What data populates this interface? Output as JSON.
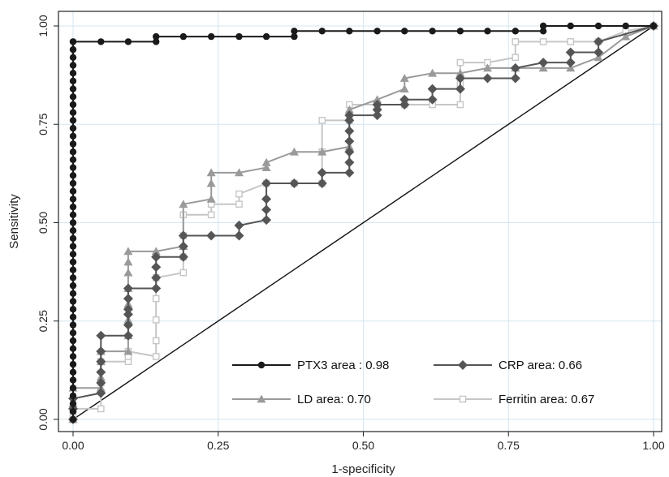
{
  "chart_data": {
    "type": "line",
    "title": "",
    "xlabel": "1-specificity",
    "ylabel": "Sensitivity",
    "xlim": [
      0,
      1
    ],
    "ylim": [
      0,
      1
    ],
    "x_ticks": [
      "0.00",
      "0.25",
      "0.50",
      "0.75",
      "1.00"
    ],
    "y_ticks": [
      "0.00",
      "0.25",
      "0.50",
      "0.75",
      "1.00"
    ],
    "grid": true,
    "legend_position": "bottom-right",
    "reference_line": "diagonal",
    "series": [
      {
        "name": "PTX3 area",
        "legend_label": "PTX3 area   : 0.98",
        "color": "#1a1a1a",
        "marker": "circle",
        "x": [
          0,
          0,
          0,
          0,
          0,
          0,
          0,
          0,
          0,
          0,
          0,
          0,
          0,
          0,
          0,
          0,
          0,
          0,
          0,
          0,
          0,
          0,
          0,
          0,
          0,
          0,
          0,
          0,
          0,
          0,
          0,
          0,
          0,
          0,
          0,
          0,
          0,
          0,
          0,
          0,
          0,
          0,
          0,
          0,
          0,
          0,
          0,
          0,
          0,
          0,
          0.048,
          0.095,
          0.143,
          0.143,
          0.19,
          0.238,
          0.286,
          0.333,
          0.381,
          0.381,
          0.429,
          0.476,
          0.524,
          0.571,
          0.619,
          0.667,
          0.714,
          0.762,
          0.81,
          0.81,
          0.857,
          0.905,
          0.952,
          1.0
        ],
        "y": [
          0,
          0.02,
          0.04,
          0.06,
          0.08,
          0.1,
          0.12,
          0.14,
          0.16,
          0.18,
          0.2,
          0.22,
          0.24,
          0.26,
          0.28,
          0.3,
          0.32,
          0.34,
          0.36,
          0.38,
          0.4,
          0.42,
          0.44,
          0.46,
          0.48,
          0.5,
          0.52,
          0.54,
          0.56,
          0.58,
          0.6,
          0.62,
          0.64,
          0.66,
          0.68,
          0.7,
          0.72,
          0.74,
          0.76,
          0.78,
          0.8,
          0.82,
          0.84,
          0.86,
          0.88,
          0.9,
          0.92,
          0.94,
          0.96,
          0.96,
          0.96,
          0.96,
          0.96,
          0.973,
          0.973,
          0.973,
          0.973,
          0.973,
          0.973,
          0.987,
          0.987,
          0.987,
          0.987,
          0.987,
          0.987,
          0.987,
          0.987,
          0.987,
          0.987,
          1.0,
          1.0,
          1.0,
          1.0,
          1.0
        ]
      },
      {
        "name": "CRP",
        "legend_label": "CRP   area: 0.66",
        "color": "#555555",
        "marker": "diamond",
        "x": [
          0,
          0,
          0,
          0.048,
          0.048,
          0.048,
          0.048,
          0.048,
          0.048,
          0.095,
          0.095,
          0.095,
          0.095,
          0.095,
          0.095,
          0.143,
          0.143,
          0.143,
          0.143,
          0.143,
          0.19,
          0.19,
          0.19,
          0.238,
          0.286,
          0.286,
          0.333,
          0.333,
          0.333,
          0.333,
          0.381,
          0.429,
          0.429,
          0.476,
          0.476,
          0.476,
          0.476,
          0.476,
          0.476,
          0.476,
          0.524,
          0.524,
          0.524,
          0.571,
          0.571,
          0.619,
          0.619,
          0.667,
          0.667,
          0.714,
          0.762,
          0.762,
          0.81,
          0.857,
          0.857,
          0.905,
          0.905,
          1.0
        ],
        "y": [
          0,
          0.027,
          0.053,
          0.067,
          0.093,
          0.12,
          0.147,
          0.173,
          0.213,
          0.213,
          0.24,
          0.267,
          0.28,
          0.307,
          0.333,
          0.333,
          0.36,
          0.387,
          0.413,
          0.413,
          0.413,
          0.44,
          0.467,
          0.467,
          0.467,
          0.493,
          0.507,
          0.533,
          0.56,
          0.6,
          0.6,
          0.6,
          0.627,
          0.627,
          0.653,
          0.68,
          0.707,
          0.733,
          0.76,
          0.773,
          0.773,
          0.787,
          0.8,
          0.8,
          0.813,
          0.813,
          0.84,
          0.84,
          0.867,
          0.867,
          0.867,
          0.893,
          0.907,
          0.907,
          0.933,
          0.933,
          0.96,
          1.0
        ]
      },
      {
        "name": "LD",
        "legend_label": "LD area: 0.70",
        "color": "#9a9a9a",
        "marker": "triangle",
        "x": [
          0,
          0,
          0,
          0.048,
          0.048,
          0.048,
          0.048,
          0.095,
          0.095,
          0.095,
          0.095,
          0.095,
          0.095,
          0.095,
          0.095,
          0.143,
          0.19,
          0.19,
          0.238,
          0.238,
          0.238,
          0.286,
          0.333,
          0.333,
          0.381,
          0.429,
          0.476,
          0.476,
          0.524,
          0.571,
          0.571,
          0.619,
          0.667,
          0.714,
          0.762,
          0.81,
          0.857,
          0.905,
          0.952,
          1.0
        ],
        "y": [
          0,
          0.04,
          0.08,
          0.08,
          0.107,
          0.147,
          0.173,
          0.173,
          0.213,
          0.253,
          0.293,
          0.333,
          0.373,
          0.4,
          0.427,
          0.427,
          0.44,
          0.547,
          0.56,
          0.6,
          0.627,
          0.627,
          0.64,
          0.653,
          0.68,
          0.68,
          0.693,
          0.787,
          0.813,
          0.84,
          0.867,
          0.88,
          0.88,
          0.893,
          0.893,
          0.893,
          0.893,
          0.92,
          0.973,
          1.0
        ]
      },
      {
        "name": "Ferritin",
        "legend_label": "Ferritin area: 0.67",
        "color": "#c6c6c6",
        "marker": "square",
        "x": [
          0,
          0,
          0,
          0.048,
          0.048,
          0.048,
          0.095,
          0.095,
          0.095,
          0.143,
          0.143,
          0.143,
          0.143,
          0.143,
          0.19,
          0.19,
          0.19,
          0.19,
          0.238,
          0.238,
          0.286,
          0.286,
          0.333,
          0.381,
          0.429,
          0.429,
          0.429,
          0.476,
          0.476,
          0.524,
          0.571,
          0.619,
          0.667,
          0.667,
          0.667,
          0.714,
          0.762,
          0.762,
          0.81,
          0.857,
          0.905,
          0.952,
          1.0
        ],
        "y": [
          0,
          0.013,
          0.027,
          0.027,
          0.093,
          0.147,
          0.147,
          0.16,
          0.173,
          0.16,
          0.2,
          0.253,
          0.307,
          0.36,
          0.373,
          0.413,
          0.467,
          0.52,
          0.52,
          0.547,
          0.547,
          0.573,
          0.6,
          0.6,
          0.6,
          0.68,
          0.76,
          0.76,
          0.8,
          0.8,
          0.8,
          0.8,
          0.8,
          0.853,
          0.907,
          0.907,
          0.92,
          0.96,
          0.96,
          0.96,
          0.96,
          0.987,
          1.0
        ]
      }
    ]
  }
}
